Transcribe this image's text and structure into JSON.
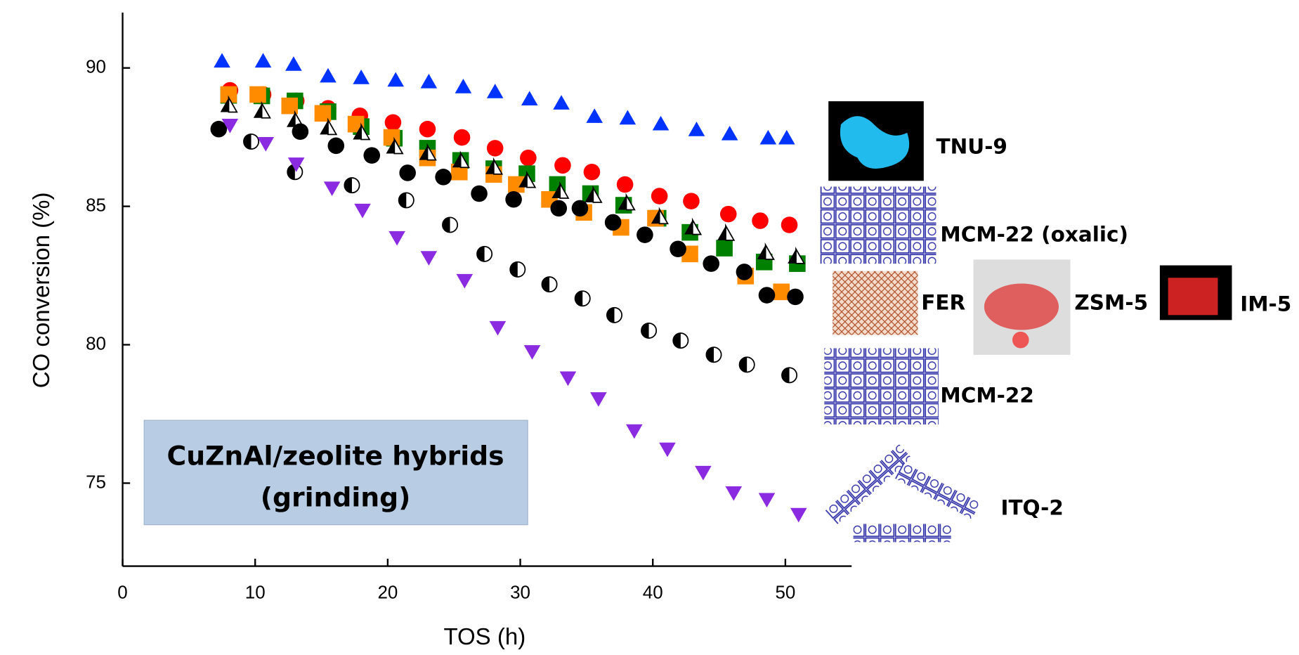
{
  "chart_data": {
    "type": "scatter",
    "xlabel": "TOS (h)",
    "ylabel": "CO conversion (%)",
    "xlim": [
      0,
      55
    ],
    "ylim": [
      72,
      92
    ],
    "xticks": [
      0,
      10,
      20,
      30,
      40,
      50
    ],
    "yticks": [
      75,
      80,
      85,
      90
    ],
    "box_text": [
      "CuZnAl/zeolite hybrids",
      "(grinding)"
    ],
    "annotations": [
      "TNU-9",
      "MCM-22 (oxalic)",
      "FER",
      "ZSM-5",
      "IM-5",
      "MCM-22",
      "ITQ-2"
    ],
    "series": [
      {
        "color": "#0033ff",
        "marker": "triangle-up",
        "x": [
          7.5,
          10.6,
          12.9,
          15.5,
          18,
          20.6,
          23.1,
          25.7,
          28.1,
          30.7,
          33.1,
          35.6,
          38.1,
          40.6,
          43.3,
          45.8,
          48.7,
          50.1
        ],
        "values": [
          90.24,
          90.24,
          90.12,
          89.7,
          89.64,
          89.55,
          89.49,
          89.31,
          89.13,
          88.87,
          88.72,
          88.24,
          88.18,
          87.97,
          87.76,
          87.61,
          87.46,
          87.46
        ]
      },
      {
        "color": "#ff0000",
        "marker": "circle",
        "x": [
          8.1,
          10.6,
          13.1,
          15.5,
          17.9,
          20.4,
          23,
          25.6,
          28.1,
          30.6,
          33.2,
          35.4,
          37.9,
          40.5,
          42.9,
          45.7,
          48.1,
          50.3
        ],
        "values": [
          89.19,
          89.04,
          88.81,
          88.54,
          88.27,
          88.03,
          87.79,
          87.49,
          87.1,
          86.75,
          86.48,
          86.24,
          85.79,
          85.37,
          85.19,
          84.72,
          84.48,
          84.33
        ]
      },
      {
        "color": "#008000",
        "marker": "square",
        "x": [
          8,
          10.5,
          13,
          15.5,
          18,
          20.5,
          23,
          25.5,
          28,
          30.5,
          32.8,
          35.3,
          37.8,
          40.4,
          42.8,
          45.4,
          48.4,
          50.9
        ],
        "values": [
          89.01,
          88.99,
          88.81,
          88.42,
          87.88,
          87.46,
          87.1,
          86.66,
          86.36,
          86.18,
          85.79,
          85.46,
          85.04,
          84.57,
          84.06,
          83.49,
          82.99,
          82.93
        ]
      },
      {
        "color": "#ff8c00",
        "marker": "square",
        "x": [
          8,
          10.2,
          12.6,
          15.1,
          17.6,
          20.3,
          23,
          25.4,
          28,
          29.7,
          32.2,
          34.8,
          37.6,
          40.2,
          42.8,
          47,
          49.7
        ],
        "values": [
          89.04,
          89.04,
          88.63,
          88.36,
          87.97,
          87.49,
          86.75,
          86.24,
          86.15,
          85.79,
          85.25,
          84.78,
          84.24,
          84.57,
          83.28,
          82.48,
          81.91
        ]
      },
      {
        "color": "#000000",
        "marker": "half-triangle",
        "x": [
          8,
          10.5,
          13,
          15.5,
          18,
          20.5,
          23,
          25.5,
          28,
          30.5,
          33,
          35.5,
          38,
          40.5,
          43,
          45.5,
          48.5,
          50.8
        ],
        "values": [
          88.63,
          88.42,
          88.09,
          87.82,
          87.64,
          87.13,
          86.9,
          86.63,
          86.39,
          85.91,
          85.52,
          85.37,
          85.1,
          84.6,
          84.21,
          84,
          83.31,
          83.16
        ]
      },
      {
        "color": "#000000",
        "marker": "circle",
        "x": [
          7.25,
          13.4,
          16.1,
          18.8,
          21.5,
          24.2,
          26.9,
          29.5,
          32.9,
          34.5,
          37,
          39.4,
          41.9,
          44.4,
          46.9,
          48.6,
          50.75
        ],
        "values": [
          87.79,
          87.7,
          87.19,
          86.84,
          86.21,
          86.06,
          85.46,
          85.25,
          84.93,
          84.93,
          84.42,
          83.97,
          83.46,
          82.93,
          82.63,
          81.79,
          81.73
        ]
      },
      {
        "color": "#000000",
        "marker": "half-circle",
        "x": [
          9.7,
          13,
          17.3,
          21.4,
          24.7,
          27.3,
          29.8,
          32.2,
          34.7,
          37.1,
          39.7,
          42.1,
          44.6,
          47.1,
          50.3
        ],
        "values": [
          87.34,
          86.24,
          85.76,
          85.22,
          84.33,
          83.28,
          82.72,
          82.18,
          81.67,
          81.07,
          80.51,
          80.15,
          79.64,
          79.28,
          78.9
        ]
      },
      {
        "color": "#8a2be2",
        "marker": "triangle-down",
        "x": [
          8.1,
          10.8,
          13.1,
          15.8,
          18.1,
          20.7,
          23.1,
          25.8,
          28.3,
          30.9,
          33.6,
          35.9,
          38.6,
          41.1,
          43.8,
          46.1,
          48.6,
          51
        ],
        "values": [
          87.94,
          87.28,
          86.54,
          85.67,
          84.87,
          83.88,
          83.16,
          82.33,
          80.63,
          79.76,
          78.81,
          78.06,
          76.9,
          76.24,
          75.4,
          74.66,
          74.42,
          73.88
        ]
      }
    ]
  }
}
